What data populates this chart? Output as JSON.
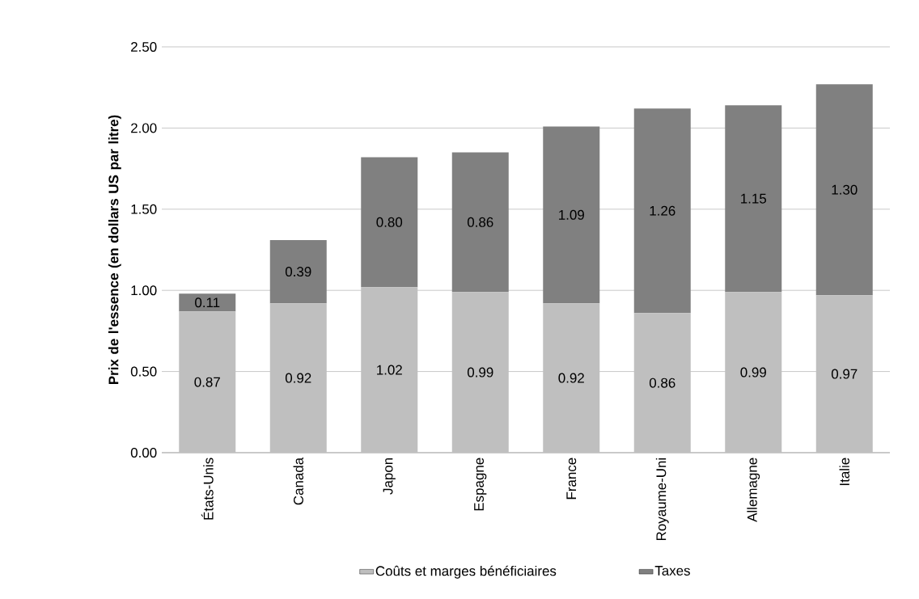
{
  "chart_data": {
    "type": "bar",
    "stacked": true,
    "ylabel": "Prix de l'essence (en dollars US par litre)",
    "categories": [
      "États-Unis",
      "Canada",
      "Japon",
      "Espagne",
      "France",
      "Royaume-Uni",
      "Allemagne",
      "Italie"
    ],
    "series": [
      {
        "name": "Coûts et marges bénéficiaires",
        "color": "#bfbfbf",
        "values": [
          0.87,
          0.92,
          1.02,
          0.99,
          0.92,
          0.86,
          0.99,
          0.97
        ],
        "value_labels": [
          "0.87",
          "0.92",
          "1.02",
          "0.99",
          "0.92",
          "0.86",
          "0.99",
          "0.97"
        ]
      },
      {
        "name": "Taxes",
        "color": "#808080",
        "values": [
          0.11,
          0.39,
          0.8,
          0.86,
          1.09,
          1.26,
          1.15,
          1.3
        ],
        "value_labels": [
          "0.11",
          "0.39",
          "0.80",
          "0.86",
          "1.09",
          "1.26",
          "1.15",
          "1.30"
        ]
      }
    ],
    "ylim": [
      0,
      2.5
    ],
    "yticks": [
      {
        "value": 0,
        "label": "0.00"
      },
      {
        "value": 0.5,
        "label": "0.50"
      },
      {
        "value": 1,
        "label": "1.00"
      },
      {
        "value": 1.5,
        "label": "1.50"
      },
      {
        "value": 2,
        "label": "2.00"
      },
      {
        "value": 2.5,
        "label": "2.50"
      }
    ],
    "grid": "y",
    "legend": "bottom"
  }
}
